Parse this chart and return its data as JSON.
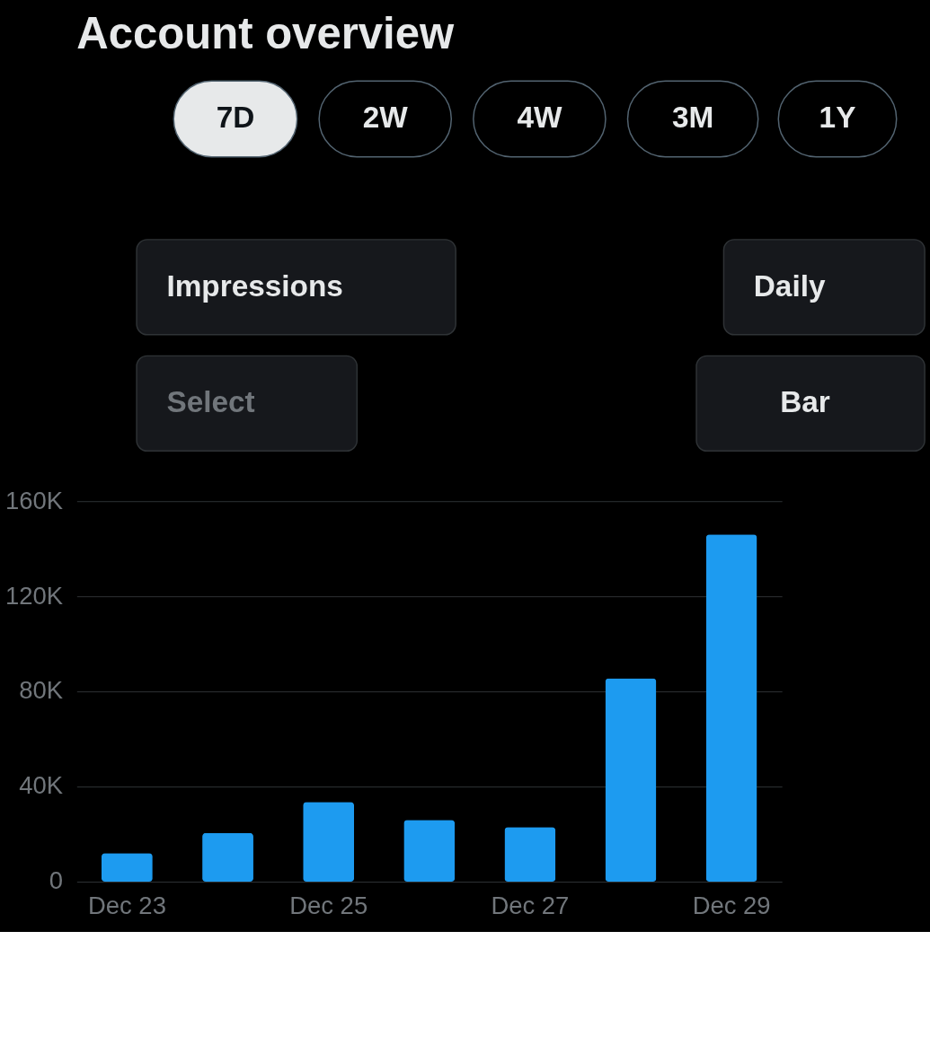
{
  "chart_data": {
    "type": "bar",
    "title": "Account overview",
    "annotations": [
      "7D",
      "2W",
      "4W",
      "3M",
      "1Y",
      "Impressions",
      "Daily",
      "Select",
      "Bar"
    ],
    "categories": [
      "Dec 23",
      null,
      "Dec 25",
      null,
      "Dec 27",
      null,
      "Dec 29"
    ],
    "series": [
      {
        "color": "#1d9bf0",
        "values": [
          12000,
          20500,
          33500,
          26000,
          23000,
          85500,
          146000
        ]
      }
    ],
    "ylim": [
      0,
      160000
    ],
    "yticks": [
      0,
      {
        "value": 40000,
        "label": "40K"
      },
      {
        "value": 80000,
        "label": "80K"
      },
      {
        "value": 120000,
        "label": "120K"
      },
      {
        "value": 160000,
        "label": "160K"
      }
    ],
    "grid": "y",
    "legend": false
  }
}
